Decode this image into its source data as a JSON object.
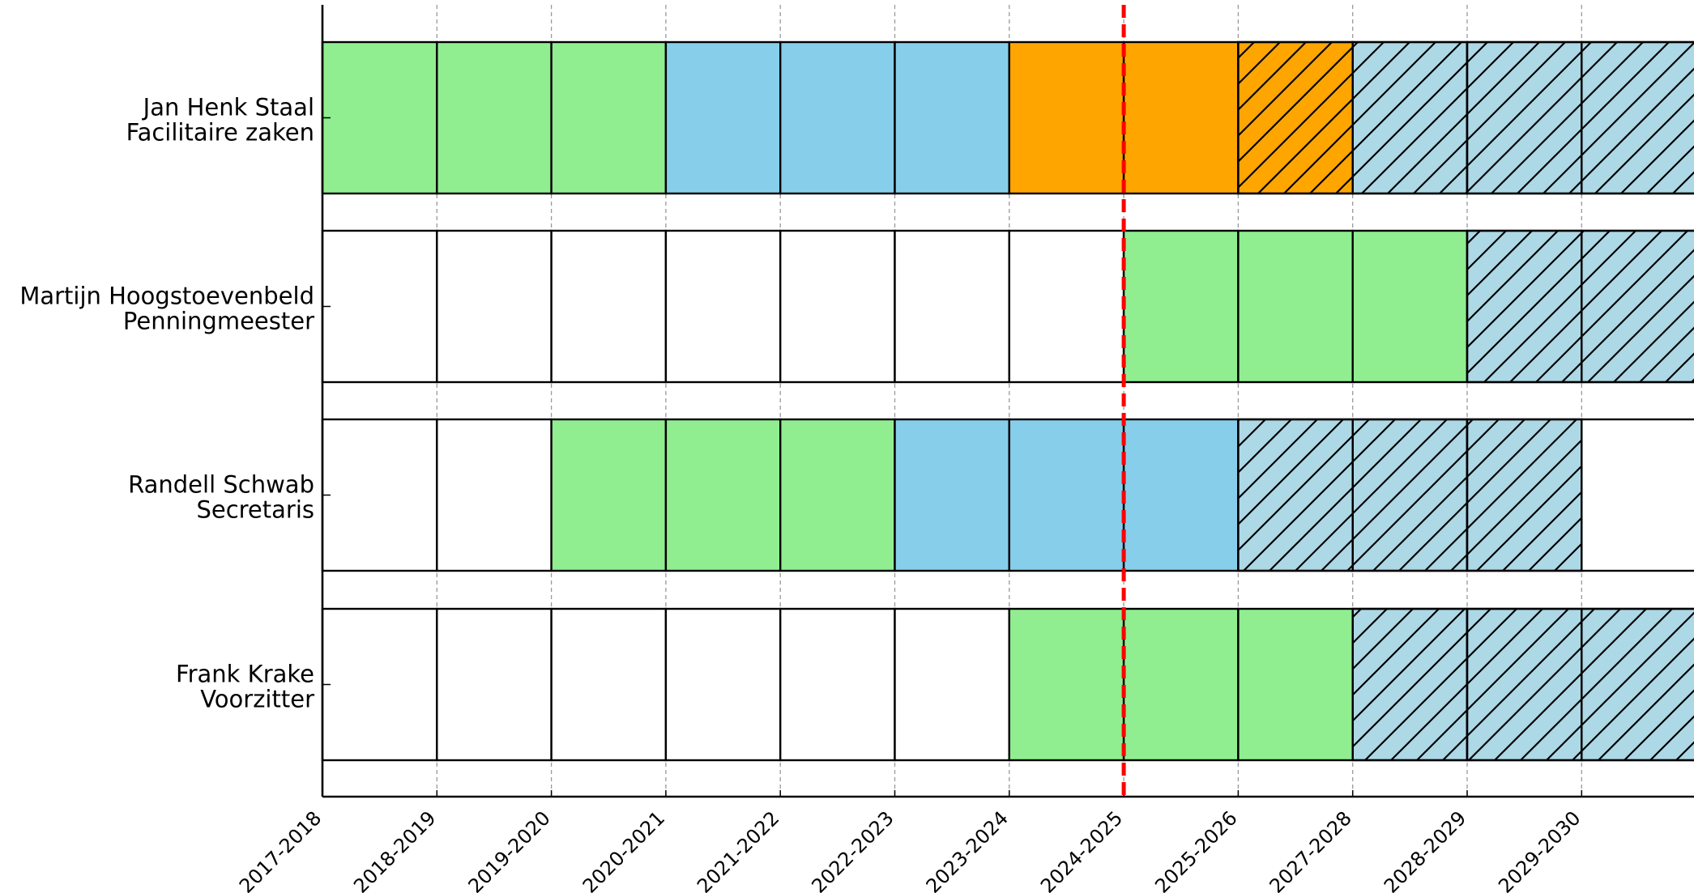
{
  "colors": {
    "green": "#90EE90",
    "blue": "#87CEEB",
    "orange": "#FFA500",
    "lightblue_hatched": "#ADD8E6",
    "current_line": "#FF0000",
    "grid": "#999999"
  },
  "chart_data": {
    "type": "gantt",
    "title": "",
    "xlabel": "",
    "ylabel": "",
    "x_ticks": [
      "2017-2018",
      "2018-2019",
      "2019-2020",
      "2020-2021",
      "2021-2022",
      "2022-2023",
      "2023-2024",
      "2024-2025",
      "2025-2026",
      "2027-2028",
      "2028-2029",
      "2029-2030"
    ],
    "current_period": "2024-2025",
    "grid": true,
    "rows": [
      {
        "name": "Jan Henk Staal",
        "role": "Facilitaire zaken",
        "cells": [
          {
            "start": 0,
            "color": "green",
            "hatched": false
          },
          {
            "start": 1,
            "color": "green",
            "hatched": false
          },
          {
            "start": 2,
            "color": "green",
            "hatched": false
          },
          {
            "start": 3,
            "color": "blue",
            "hatched": false
          },
          {
            "start": 4,
            "color": "blue",
            "hatched": false
          },
          {
            "start": 5,
            "color": "blue",
            "hatched": false
          },
          {
            "start": 6,
            "color": "orange",
            "hatched": false
          },
          {
            "start": 7,
            "color": "orange",
            "hatched": false
          },
          {
            "start": 8,
            "color": "orange",
            "hatched": true
          },
          {
            "start": 9,
            "color": "lightblue_hatched",
            "hatched": true
          },
          {
            "start": 10,
            "color": "lightblue_hatched",
            "hatched": true
          },
          {
            "start": 11,
            "color": "lightblue_hatched",
            "hatched": true
          }
        ]
      },
      {
        "name": "Martijn Hoogstoevenbeld",
        "role": "Penningmeester",
        "cells": [
          {
            "start": 0,
            "color": "white",
            "hatched": false
          },
          {
            "start": 1,
            "color": "white",
            "hatched": false
          },
          {
            "start": 2,
            "color": "white",
            "hatched": false
          },
          {
            "start": 3,
            "color": "white",
            "hatched": false
          },
          {
            "start": 4,
            "color": "white",
            "hatched": false
          },
          {
            "start": 5,
            "color": "white",
            "hatched": false
          },
          {
            "start": 6,
            "color": "white",
            "hatched": false
          },
          {
            "start": 7,
            "color": "green",
            "hatched": false
          },
          {
            "start": 8,
            "color": "green",
            "hatched": false
          },
          {
            "start": 9,
            "color": "green",
            "hatched": false
          },
          {
            "start": 10,
            "color": "lightblue_hatched",
            "hatched": true
          },
          {
            "start": 11,
            "color": "lightblue_hatched",
            "hatched": true
          }
        ]
      },
      {
        "name": "Randell Schwab",
        "role": "Secretaris",
        "cells": [
          {
            "start": 0,
            "color": "white",
            "hatched": false
          },
          {
            "start": 1,
            "color": "white",
            "hatched": false
          },
          {
            "start": 2,
            "color": "green",
            "hatched": false
          },
          {
            "start": 3,
            "color": "green",
            "hatched": false
          },
          {
            "start": 4,
            "color": "green",
            "hatched": false
          },
          {
            "start": 5,
            "color": "blue",
            "hatched": false
          },
          {
            "start": 6,
            "color": "blue",
            "hatched": false
          },
          {
            "start": 7,
            "color": "blue",
            "hatched": false
          },
          {
            "start": 8,
            "color": "lightblue_hatched",
            "hatched": true
          },
          {
            "start": 9,
            "color": "lightblue_hatched",
            "hatched": true
          },
          {
            "start": 10,
            "color": "lightblue_hatched",
            "hatched": true
          },
          {
            "start": 11,
            "color": "white",
            "hatched": false
          }
        ]
      },
      {
        "name": "Frank Krake",
        "role": "Voorzitter",
        "cells": [
          {
            "start": 0,
            "color": "white",
            "hatched": false
          },
          {
            "start": 1,
            "color": "white",
            "hatched": false
          },
          {
            "start": 2,
            "color": "white",
            "hatched": false
          },
          {
            "start": 3,
            "color": "white",
            "hatched": false
          },
          {
            "start": 4,
            "color": "white",
            "hatched": false
          },
          {
            "start": 5,
            "color": "white",
            "hatched": false
          },
          {
            "start": 6,
            "color": "green",
            "hatched": false
          },
          {
            "start": 7,
            "color": "green",
            "hatched": false
          },
          {
            "start": 8,
            "color": "green",
            "hatched": false
          },
          {
            "start": 9,
            "color": "lightblue_hatched",
            "hatched": true
          },
          {
            "start": 10,
            "color": "lightblue_hatched",
            "hatched": true
          },
          {
            "start": 11,
            "color": "lightblue_hatched",
            "hatched": true
          }
        ]
      }
    ]
  }
}
